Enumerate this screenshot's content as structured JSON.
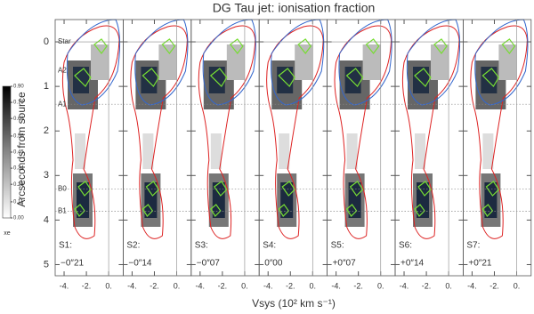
{
  "chart_data": {
    "type": "panels",
    "title": "DG Tau jet: ionisation fraction",
    "x_label": "Vsys (10² km s⁻¹)",
    "y_label": "Arcseconds from source",
    "xlim": [
      -4.8,
      1.3
    ],
    "xticks": [
      {
        "value": -4,
        "label": "-4."
      },
      {
        "value": -2,
        "label": "-2."
      },
      {
        "value": 0,
        "label": "0."
      }
    ],
    "ylim": [
      -0.5,
      5.25
    ],
    "yticks": [
      0,
      1,
      2,
      3,
      4,
      5
    ],
    "references": [
      {
        "name": "Star",
        "value": 0,
        "style": "solid"
      },
      {
        "name": "A2",
        "value": 0.65,
        "style": "none"
      },
      {
        "name": "A1",
        "value": 1.4,
        "style": "dotted"
      },
      {
        "name": "B0",
        "value": 3.3,
        "style": "dotted"
      },
      {
        "name": "B1",
        "value": 3.8,
        "style": "dotted"
      }
    ],
    "panels": [
      {
        "name": "S1:",
        "offset": "−0″21"
      },
      {
        "name": "S2:",
        "offset": "−0″14"
      },
      {
        "name": "S3:",
        "offset": "−0″07"
      },
      {
        "name": "S4:",
        "offset": "0″00"
      },
      {
        "name": "S5:",
        "offset": "+0″07"
      },
      {
        "name": "S6:",
        "offset": "+0″14"
      },
      {
        "name": "S7:",
        "offset": "+0″21"
      }
    ],
    "colorbar": {
      "label": "xe",
      "ticks": [
        {
          "value": 0.9,
          "label": "0.90"
        },
        {
          "value": 0.79,
          "label": "0.79"
        },
        {
          "value": 0.68,
          "label": "0.68"
        },
        {
          "value": 0.56,
          "label": "0.56"
        },
        {
          "value": 0.45,
          "label": "0.45"
        },
        {
          "value": 0.34,
          "label": "0.34"
        },
        {
          "value": 0.23,
          "label": "0.23"
        },
        {
          "value": 0.11,
          "label": "0.11"
        },
        {
          "value": 0,
          "label": "0.00"
        }
      ]
    }
  }
}
